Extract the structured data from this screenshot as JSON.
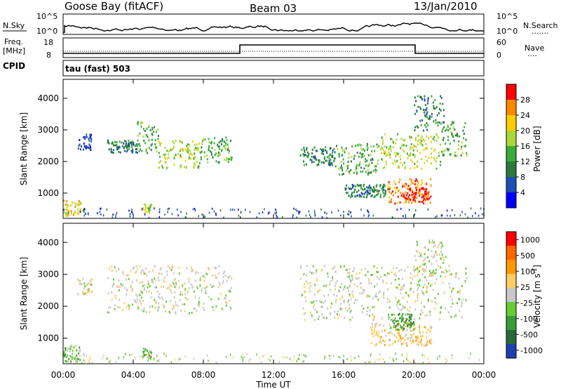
{
  "header": {
    "station": "Goose Bay (fitACF)",
    "beam": "Beam 03",
    "date": "13/Jan/2010"
  },
  "strip_labels": {
    "nsky": "N.Sky",
    "nsky_ticks": [
      "10^5",
      "10^0"
    ],
    "freq": "Freq.",
    "freq_unit": "[MHz]",
    "freq_ticks": [
      "18",
      "8"
    ],
    "cpid": "CPID",
    "nsearch": "N.Search",
    "nsearch_ticks": [
      "10^5",
      "10^0"
    ],
    "nave": "Nave",
    "nave_ticks": [
      "60",
      "0"
    ],
    "dots": ".......",
    "dots_short": "....",
    "cpid_value": "tau (fast) 503"
  },
  "chart_data": [
    {
      "type": "heatmap",
      "name": "power-panel",
      "xlabel": "Time UT",
      "ylabel": "Slant Range [km]",
      "x_ticks": [
        "00:00",
        "04:00",
        "08:00",
        "12:00",
        "16:00",
        "20:00",
        "00:00"
      ],
      "xlim_hours": [
        0,
        24
      ],
      "y_ticks": [
        1000,
        2000,
        3000,
        4000
      ],
      "ylim": [
        200,
        4600
      ],
      "colorbar": {
        "label": "Power [dB]",
        "ticks": [
          "4",
          "8",
          "12",
          "16",
          "20",
          "24",
          "28"
        ],
        "colors": [
          "#0000ff",
          "#1f4fb4",
          "#2a7a3c",
          "#3aaa3a",
          "#a8d83a",
          "#ffcc00",
          "#ff8800",
          "#ff0000"
        ]
      },
      "regions": [
        {
          "t0": 0.8,
          "t1": 1.6,
          "r0": 2400,
          "r1": 2900,
          "level": 1
        },
        {
          "t0": 2.5,
          "t1": 4.2,
          "r0": 2300,
          "r1": 2700,
          "level": 2
        },
        {
          "t0": 4.2,
          "t1": 5.4,
          "r0": 2300,
          "r1": 3300,
          "level": 3
        },
        {
          "t0": 5.4,
          "t1": 7.8,
          "r0": 1800,
          "r1": 2700,
          "level": 4
        },
        {
          "t0": 7.8,
          "t1": 9.6,
          "r0": 2000,
          "r1": 2800,
          "level": 3
        },
        {
          "t0": 0.0,
          "t1": 1.0,
          "r0": 300,
          "r1": 800,
          "level": 5
        },
        {
          "t0": 4.5,
          "t1": 5.0,
          "r0": 400,
          "r1": 700,
          "level": 4
        },
        {
          "t0": 13.5,
          "t1": 15.5,
          "r0": 1900,
          "r1": 2500,
          "level": 2
        },
        {
          "t0": 15.5,
          "t1": 18.0,
          "r0": 1600,
          "r1": 2600,
          "level": 3
        },
        {
          "t0": 18.0,
          "t1": 21.5,
          "r0": 1800,
          "r1": 2900,
          "level": 4
        },
        {
          "t0": 21.5,
          "t1": 23.0,
          "r0": 2200,
          "r1": 3300,
          "level": 3
        },
        {
          "t0": 18.5,
          "t1": 21.0,
          "r0": 700,
          "r1": 1500,
          "level": 6
        },
        {
          "t0": 19.5,
          "t1": 20.8,
          "r0": 800,
          "r1": 1200,
          "level": 7
        },
        {
          "t0": 16.0,
          "t1": 18.5,
          "r0": 900,
          "r1": 1300,
          "level": 2
        },
        {
          "t0": 20.0,
          "t1": 21.8,
          "r0": 3000,
          "r1": 4100,
          "level": 2
        }
      ]
    },
    {
      "type": "heatmap",
      "name": "velocity-panel",
      "xlabel": "Time UT",
      "ylabel": "Slant Range [km]",
      "x_ticks": [
        "00:00",
        "04:00",
        "08:00",
        "12:00",
        "16:00",
        "20:00",
        "00:00"
      ],
      "xlim_hours": [
        0,
        24
      ],
      "y_ticks": [
        1000,
        2000,
        3000,
        4000
      ],
      "ylim": [
        200,
        4600
      ],
      "colorbar": {
        "label": "Velocity  [m s",
        "label_sup": "-1",
        "label_end": "]",
        "ticks": [
          "1000",
          "500",
          "100",
          "25",
          "-25",
          "-100",
          "-500",
          "-1000"
        ],
        "colors": [
          "#1f3fb0",
          "#2a6a3a",
          "#3a9a3a",
          "#66cc33",
          "#c8c8c8",
          "#ffcc66",
          "#ff9900",
          "#ff6600",
          "#ff0000"
        ]
      },
      "regions": [
        {
          "t0": 0.8,
          "t1": 1.6,
          "r0": 2400,
          "r1": 2900,
          "level": 4
        },
        {
          "t0": 2.5,
          "t1": 9.6,
          "r0": 1800,
          "r1": 3300,
          "level": 4
        },
        {
          "t0": 0.0,
          "t1": 1.0,
          "r0": 300,
          "r1": 800,
          "level": 3
        },
        {
          "t0": 4.5,
          "t1": 5.0,
          "r0": 400,
          "r1": 700,
          "level": 3
        },
        {
          "t0": 13.5,
          "t1": 23.0,
          "r0": 1600,
          "r1": 3300,
          "level": 4
        },
        {
          "t0": 17.5,
          "t1": 21.0,
          "r0": 800,
          "r1": 1500,
          "level": 5
        },
        {
          "t0": 18.5,
          "t1": 20.0,
          "r0": 1300,
          "r1": 1800,
          "level": 2
        },
        {
          "t0": 20.0,
          "t1": 21.8,
          "r0": 3000,
          "r1": 4100,
          "level": 4
        }
      ]
    }
  ]
}
